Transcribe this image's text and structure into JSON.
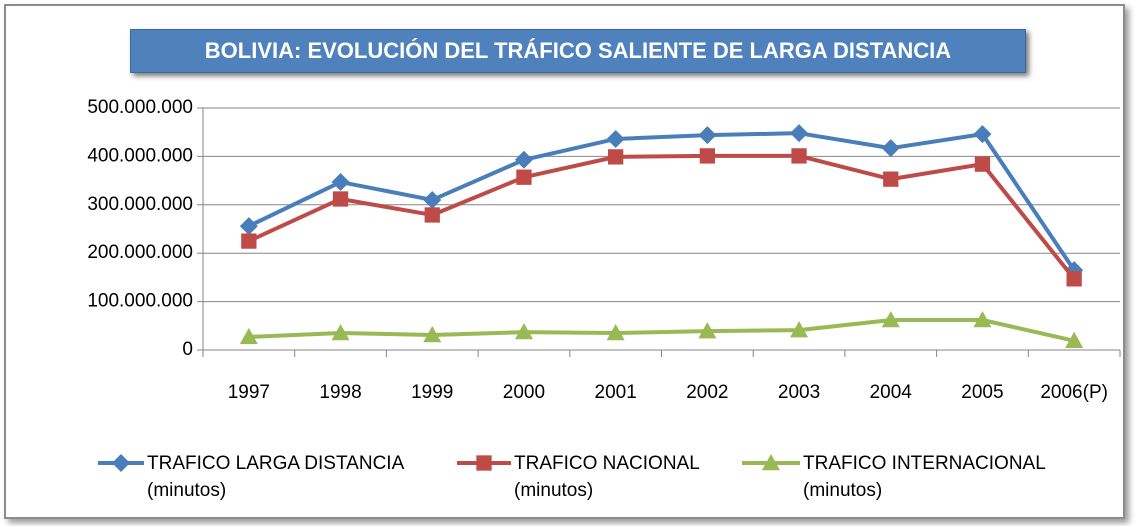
{
  "chart_data": {
    "type": "line",
    "title": "BOLIVIA: EVOLUCIÓN DEL TRÁFICO SALIENTE DE LARGA DISTANCIA",
    "categories": [
      "1997",
      "1998",
      "1999",
      "2000",
      "2001",
      "2002",
      "2003",
      "2004",
      "2005",
      "2006(P)"
    ],
    "series": [
      {
        "name": "TRAFICO LARGA DISTANCIA (minutos)",
        "color": "#4a7ebb",
        "marker": "diamond",
        "values": [
          256000000,
          347000000,
          310000000,
          393000000,
          436000000,
          444000000,
          448000000,
          417000000,
          446000000,
          165000000
        ]
      },
      {
        "name": "TRAFICO NACIONAL (minutos)",
        "color": "#be4b48",
        "marker": "square",
        "values": [
          225000000,
          312000000,
          279000000,
          357000000,
          399000000,
          401000000,
          401000000,
          353000000,
          384000000,
          147000000
        ]
      },
      {
        "name": "TRAFICO INTERNACIONAL (minutos)",
        "color": "#98b954",
        "marker": "triangle",
        "values": [
          27000000,
          35000000,
          31000000,
          37000000,
          35000000,
          39000000,
          41000000,
          62000000,
          62000000,
          19000000
        ]
      }
    ],
    "ylim": [
      0,
      500000000
    ],
    "yticks": [
      0,
      {
        "value": 100000000,
        "label": "100.000.000"
      },
      {
        "value": 200000000,
        "label": "200.000.000"
      },
      {
        "value": 300000000,
        "label": "300.000.000"
      },
      {
        "value": 400000000,
        "label": "400.000.000"
      },
      {
        "value": 500000000,
        "label": "500.000.000"
      }
    ],
    "grid": true,
    "legend": "bottom"
  }
}
